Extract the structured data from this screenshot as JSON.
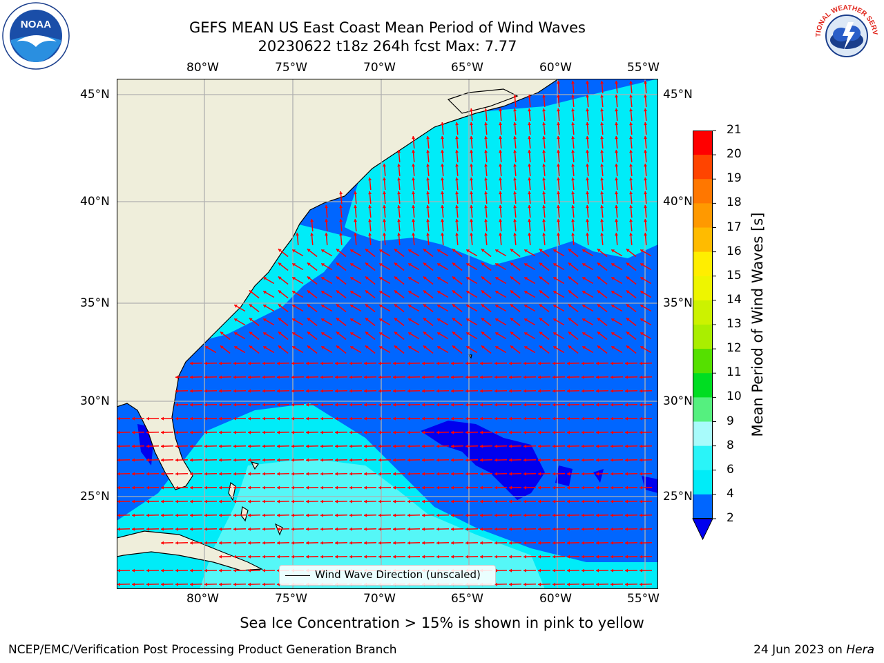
{
  "title": {
    "line1": "GEFS MEAN US East Coast Mean Period of Wind Waves",
    "line2": "20230622 t18z 264h fcst   Max: 7.77"
  },
  "logos": {
    "left": {
      "icon": "noaa-logo",
      "text": "NOAA"
    },
    "right": {
      "icon": "nws-logo",
      "text": "NATIONAL WEATHER SERVICE"
    }
  },
  "map": {
    "lon_labels": [
      "80°W",
      "75°W",
      "70°W",
      "65°W",
      "60°W",
      "55°W"
    ],
    "lat_labels": [
      "45°N",
      "40°N",
      "35°N",
      "30°N",
      "25°N"
    ],
    "lon_range": [
      -85,
      -55
    ],
    "lat_range": [
      20.5,
      46
    ],
    "land_color": "#efeedb",
    "grid_color": "#b0b0b0",
    "arrow_color": "#ff0000"
  },
  "legend": {
    "label": "Wind Wave Direction (unscaled)"
  },
  "colorbar": {
    "label": "Mean Period of Wind Waves [s]",
    "ticks": [
      "21",
      "20",
      "19",
      "18",
      "17",
      "16",
      "15",
      "14",
      "13",
      "12",
      "11",
      "10",
      "9",
      "8",
      "6",
      "4",
      "2"
    ],
    "bins": [
      {
        "from": 2,
        "to": 4,
        "color": "#0066ff"
      },
      {
        "from": 4,
        "to": 6,
        "color": "#00ecf8"
      },
      {
        "from": 6,
        "to": 7,
        "color": "#2af4f8"
      },
      {
        "from": 7,
        "to": 8,
        "color": "#55f7f7"
      },
      {
        "from": 8,
        "to": 9,
        "color": "#a8fbfb"
      },
      {
        "from": 9,
        "to": 10,
        "color": "#55f07f"
      },
      {
        "from": 10,
        "to": 11,
        "color": "#00dd22"
      },
      {
        "from": 11,
        "to": 12,
        "color": "#55e000"
      },
      {
        "from": 12,
        "to": 13,
        "color": "#aaee00"
      },
      {
        "from": 13,
        "to": 14,
        "color": "#ccf200"
      },
      {
        "from": 14,
        "to": 15,
        "color": "#eef500"
      },
      {
        "from": 15,
        "to": 16,
        "color": "#ffee00"
      },
      {
        "from": 16,
        "to": 17,
        "color": "#ffbb00"
      },
      {
        "from": 17,
        "to": 18,
        "color": "#ff9900"
      },
      {
        "from": 18,
        "to": 19,
        "color": "#ff7700"
      },
      {
        "from": 19,
        "to": 20,
        "color": "#ff4400"
      },
      {
        "from": 20,
        "to": 21,
        "color": "#ff0000"
      }
    ],
    "under_color": "#0000ee"
  },
  "note": "Sea Ice Concentration > 15% is shown in pink to yellow",
  "footer": {
    "left": "NCEP/EMC/Verification Post Processing Product Generation Branch",
    "right_date": "24 Jun 2023 on ",
    "right_machine": "Hera"
  }
}
